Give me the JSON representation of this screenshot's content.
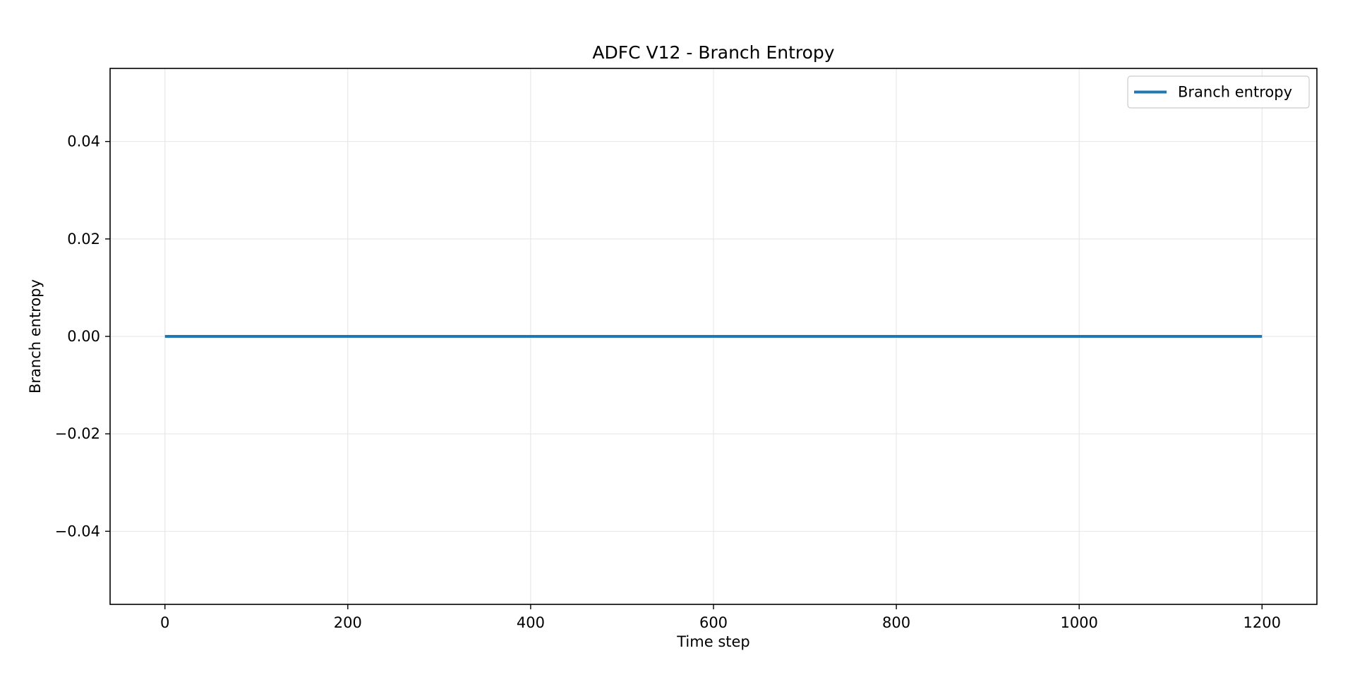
{
  "chart_data": {
    "type": "line",
    "title": "ADFC V12 - Branch Entropy",
    "xlabel": "Time step",
    "ylabel": "Branch entropy",
    "xlim": [
      -60,
      1260
    ],
    "ylim": [
      -0.055,
      0.055
    ],
    "x_ticks": [
      0,
      200,
      400,
      600,
      800,
      1000,
      1200
    ],
    "x_tick_labels": [
      "0",
      "200",
      "400",
      "600",
      "800",
      "1000",
      "1200"
    ],
    "y_ticks": [
      -0.04,
      -0.02,
      0.0,
      0.02,
      0.04
    ],
    "y_tick_labels": [
      "−0.04",
      "−0.02",
      "0.00",
      "0.02",
      "0.04"
    ],
    "grid": true,
    "legend_position": "top-right",
    "series": [
      {
        "name": "Branch entropy",
        "color": "#1f77b4",
        "x": [
          0,
          1200
        ],
        "y": [
          0.0,
          0.0
        ]
      }
    ]
  }
}
